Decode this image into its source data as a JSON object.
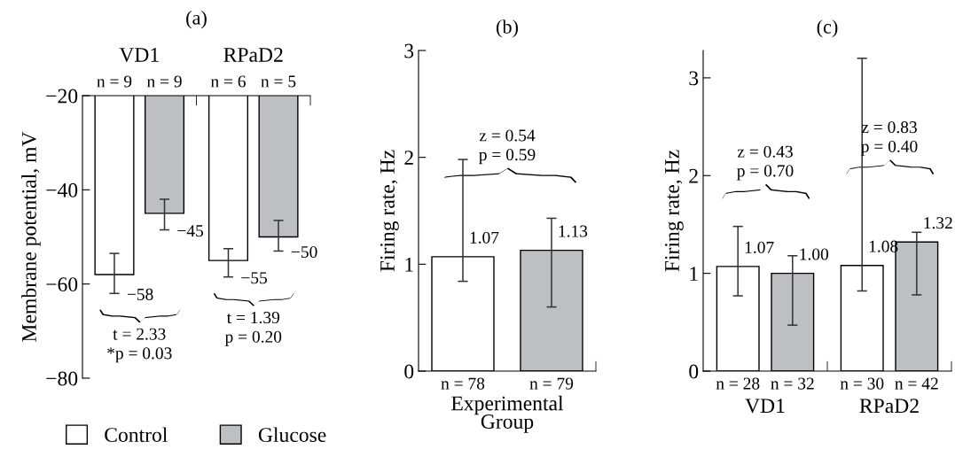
{
  "chart_data": [
    {
      "type": "bar",
      "title": "(a)",
      "ylabel": "Membrane potential, mV",
      "categories": [
        "VD1",
        "RPaD2"
      ],
      "series": [
        {
          "name": "Control",
          "color": "#ffffff",
          "values": [
            -58,
            -55
          ],
          "errors": [
            [
              -62,
              -53.5
            ],
            [
              -58.5,
              -52.5
            ]
          ]
        },
        {
          "name": "Glucose",
          "color": "#bebfc3",
          "values": [
            -45,
            -50
          ],
          "errors": [
            [
              -48.5,
              -42
            ],
            [
              -53,
              -46.5
            ]
          ]
        }
      ],
      "ylim": [
        -80,
        -20
      ],
      "yticks": [
        -80,
        -60,
        -40,
        -20
      ],
      "data_labels": true,
      "legend": "bottom",
      "annotations": [
        "n = 9",
        "n = 9",
        "n = 6",
        "n = 5",
        "t = 2.33\n*p = 0.03",
        "t = 1.39\np = 0.20"
      ]
    },
    {
      "type": "bar",
      "title": "(b)",
      "ylabel": "Firing rate, Hz",
      "xlabel": "Experimental\nGroup",
      "categories": [
        null
      ],
      "series": [
        {
          "color": "#ffffff",
          "values": [
            1.07
          ],
          "errors": [
            [
              0.84,
              1.98
            ]
          ]
        },
        {
          "color": "#bebfc3",
          "values": [
            1.13
          ],
          "errors": [
            [
              0.6,
              1.43
            ]
          ]
        }
      ],
      "ylim": [
        0,
        3
      ],
      "yticks": [
        0,
        1,
        2,
        3
      ],
      "data_labels": true,
      "annotations": [
        "n = 78",
        "n = 79",
        "z = 0.54\np = 0.59"
      ]
    },
    {
      "type": "bar",
      "title": "(c)",
      "ylabel": "Firing rate, Hz",
      "categories": [
        "VD1",
        "RPaD2"
      ],
      "series": [
        {
          "color": "#ffffff",
          "values": [
            1.07,
            1.08
          ],
          "errors": [
            [
              0.77,
              1.48
            ],
            [
              0.82,
              3.2
            ]
          ]
        },
        {
          "color": "#bebfc3",
          "values": [
            1.0,
            1.32
          ],
          "errors": [
            [
              0.47,
              1.18
            ],
            [
              0.78,
              1.42
            ]
          ],
          "value_labels": [
            "1.00",
            "1.32"
          ]
        }
      ],
      "ylim": [
        0,
        3.28
      ],
      "yticks": [
        0,
        1,
        2,
        3
      ],
      "data_labels": true,
      "annotations": [
        "n = 28",
        "n = 32",
        "n = 30",
        "n = 42",
        "z = 0.43\np = 0.70",
        "z = 0.83\np = 0.40"
      ]
    }
  ]
}
